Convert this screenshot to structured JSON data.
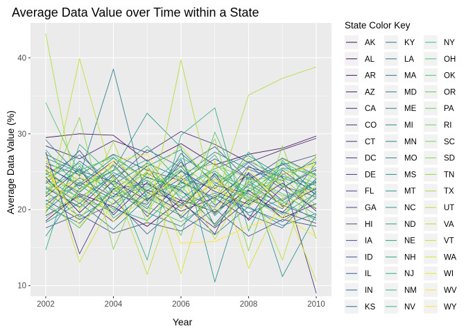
{
  "chart_data": {
    "type": "line",
    "title": "Average Data Value over Time within a State",
    "xlabel": "Year",
    "ylabel": "Average Data Value (%)",
    "x_ticks": [
      2002,
      2004,
      2006,
      2008,
      2010
    ],
    "y_ticks": [
      10,
      20,
      30,
      40
    ],
    "xlim": [
      2001.55,
      2010.45
    ],
    "ylim": [
      8.6,
      44.6
    ],
    "grid": true,
    "panel_background": "#ebebeb",
    "legend": {
      "title": "State Color Key",
      "placement": "right",
      "columns": 3
    },
    "palette": "viridis",
    "x": [
      2002,
      2003,
      2004,
      2005,
      2006,
      2007,
      2008,
      2009,
      2010
    ],
    "series": [
      {
        "name": "AK",
        "values": [
          18.5,
          22.1,
          20.4,
          17.8,
          21.3,
          19.7,
          22.6,
          18.9,
          20.8
        ]
      },
      {
        "name": "AL",
        "values": [
          29.5,
          30.0,
          29.8,
          26.4,
          28.7,
          25.9,
          27.3,
          28.1,
          29.7
        ]
      },
      {
        "name": "AR",
        "values": [
          24.3,
          19.6,
          23.8,
          21.2,
          25.1,
          22.4,
          20.7,
          23.5,
          19.8
        ]
      },
      {
        "name": "AZ",
        "values": [
          21.7,
          25.4,
          19.3,
          23.6,
          20.2,
          24.8,
          18.6,
          22.9,
          25.3
        ]
      },
      {
        "name": "CA",
        "values": [
          25.8,
          23.1,
          26.4,
          22.3,
          19.8,
          21.6,
          24.7,
          20.4,
          22.8
        ]
      },
      {
        "name": "CO",
        "values": [
          28.4,
          26.7,
          29.1,
          27.5,
          30.3,
          28.6,
          26.2,
          27.9,
          29.4
        ]
      },
      {
        "name": "CT",
        "values": [
          19.2,
          21.8,
          18.4,
          22.6,
          20.9,
          17.6,
          21.3,
          19.7,
          18.2
        ]
      },
      {
        "name": "DC",
        "values": [
          27.6,
          14.2,
          22.8,
          23.4,
          21.2,
          16.8,
          25.6,
          24.3,
          9.0
        ]
      },
      {
        "name": "DE",
        "values": [
          22.9,
          20.3,
          24.6,
          19.1,
          23.7,
          21.5,
          18.8,
          25.2,
          21.9
        ]
      },
      {
        "name": "FL",
        "values": [
          20.6,
          24.2,
          21.7,
          25.8,
          18.9,
          23.2,
          22.1,
          19.6,
          24.1
        ]
      },
      {
        "name": "GA",
        "values": [
          23.4,
          27.8,
          22.1,
          20.7,
          26.3,
          19.4,
          24.9,
          21.2,
          23.6
        ]
      },
      {
        "name": "HI",
        "values": [
          17.6,
          19.4,
          16.9,
          18.3,
          17.2,
          20.1,
          16.5,
          18.7,
          17.8
        ]
      },
      {
        "name": "IA",
        "values": [
          26.1,
          24.6,
          27.3,
          25.2,
          23.8,
          26.7,
          24.1,
          25.9,
          27.2
        ]
      },
      {
        "name": "ID",
        "values": [
          21.3,
          18.7,
          20.8,
          24.3,
          22.6,
          18.1,
          23.4,
          20.6,
          18.9
        ]
      },
      {
        "name": "IL",
        "values": [
          24.8,
          22.3,
          25.9,
          21.4,
          24.1,
          22.8,
          26.2,
          23.1,
          21.7
        ]
      },
      {
        "name": "IN",
        "values": [
          27.3,
          25.1,
          23.7,
          27.9,
          25.6,
          28.3,
          23.9,
          26.8,
          24.5
        ]
      },
      {
        "name": "KS",
        "values": [
          19.8,
          23.6,
          21.4,
          16.8,
          20.7,
          24.4,
          19.3,
          17.6,
          22.4
        ]
      },
      {
        "name": "KY",
        "values": [
          25.2,
          21.9,
          19.6,
          24.8,
          22.4,
          20.3,
          25.8,
          22.7,
          20.1
        ]
      },
      {
        "name": "LA",
        "values": [
          22.1,
          26.4,
          23.2,
          20.1,
          27.4,
          23.6,
          21.2,
          24.6,
          26.3
        ]
      },
      {
        "name": "MA",
        "values": [
          20.4,
          18.2,
          22.7,
          19.6,
          17.8,
          21.9,
          20.2,
          18.4,
          21.6
        ]
      },
      {
        "name": "MD",
        "values": [
          23.7,
          20.8,
          24.9,
          22.5,
          25.7,
          20.6,
          23.1,
          26.1,
          22.3
        ]
      },
      {
        "name": "ME",
        "values": [
          29.2,
          24.4,
          38.5,
          21.1,
          26.6,
          17.8,
          22.5,
          20.1,
          26.2
        ]
      },
      {
        "name": "MI",
        "values": [
          24.6,
          27.2,
          23.3,
          26.1,
          24.2,
          27.6,
          25.3,
          23.8,
          26.9
        ]
      },
      {
        "name": "MN",
        "values": [
          18.3,
          20.9,
          17.4,
          21.6,
          19.2,
          16.7,
          20.4,
          17.9,
          19.5
        ]
      },
      {
        "name": "MO",
        "values": [
          25.6,
          23.4,
          26.8,
          24.2,
          22.9,
          25.4,
          27.1,
          24.4,
          23.2
        ]
      },
      {
        "name": "MS",
        "values": [
          16.5,
          22.8,
          25.2,
          32.7,
          28.2,
          10.5,
          24.8,
          11.2,
          19.4
        ]
      },
      {
        "name": "MT",
        "values": [
          22.4,
          19.1,
          21.8,
          23.9,
          20.5,
          22.2,
          19.6,
          21.4,
          23.8
        ]
      },
      {
        "name": "NC",
        "values": [
          26.8,
          24.9,
          22.6,
          25.7,
          27.9,
          23.3,
          26.4,
          24.2,
          22.6
        ]
      },
      {
        "name": "ND",
        "values": [
          21.1,
          23.3,
          20.1,
          18.6,
          22.8,
          25.1,
          21.6,
          19.4,
          22.2
        ]
      },
      {
        "name": "NE",
        "values": [
          23.9,
          21.6,
          24.4,
          26.6,
          21.4,
          24.6,
          22.3,
          25.5,
          24.7
        ]
      },
      {
        "name": "NH",
        "values": [
          19.6,
          25.8,
          18.9,
          22.1,
          25.3,
          19.2,
          23.7,
          21.1,
          18.6
        ]
      },
      {
        "name": "NJ",
        "values": [
          14.7,
          28.6,
          24.4,
          13.4,
          29.8,
          33.4,
          17.2,
          26.5,
          21.9
        ]
      },
      {
        "name": "NM",
        "values": [
          27.9,
          22.7,
          25.1,
          28.4,
          23.6,
          21.3,
          27.6,
          22.9,
          25.6
        ]
      },
      {
        "name": "NV",
        "values": [
          22.6,
          25.2,
          26.9,
          21.8,
          23.4,
          27.2,
          20.9,
          26.2,
          24.1
        ]
      },
      {
        "name": "NY",
        "values": [
          24.2,
          26.1,
          21.6,
          23.1,
          26.8,
          24.7,
          22.9,
          20.8,
          23.7
        ]
      },
      {
        "name": "OH",
        "values": [
          20.9,
          17.6,
          23.1,
          20.4,
          18.4,
          21.2,
          24.3,
          22.1,
          19.3
        ]
      },
      {
        "name": "OK",
        "values": [
          34.1,
          24.7,
          27.2,
          23.7,
          16.6,
          30.2,
          20.5,
          25.4,
          23.4
        ]
      },
      {
        "name": "OR",
        "values": [
          23.1,
          20.4,
          22.3,
          24.9,
          21.8,
          19.6,
          23.6,
          24.8,
          21.4
        ]
      },
      {
        "name": "PA",
        "values": [
          26.4,
          23.8,
          20.7,
          22.9,
          24.9,
          26.1,
          21.8,
          18.9,
          25.2
        ]
      },
      {
        "name": "RI",
        "values": [
          18.9,
          22.4,
          25.7,
          20.9,
          23.2,
          17.9,
          22.8,
          24.1,
          20.6
        ]
      },
      {
        "name": "SC",
        "values": [
          25.3,
          21.3,
          19.9,
          26.3,
          20.1,
          25.8,
          24.2,
          21.8,
          22.9
        ]
      },
      {
        "name": "SD",
        "values": [
          21.8,
          32.1,
          14.8,
          25.4,
          22.1,
          29.3,
          14.6,
          28.4,
          16.2
        ]
      },
      {
        "name": "TN",
        "values": [
          22.2,
          24.1,
          23.6,
          19.7,
          25.9,
          22.7,
          26.8,
          23.3,
          20.2
        ]
      },
      {
        "name": "TX",
        "values": [
          25.1,
          18.8,
          24.2,
          22.4,
          19.3,
          24.1,
          21.4,
          26.7,
          24.3
        ]
      },
      {
        "name": "UT",
        "values": [
          43.2,
          19.8,
          28.9,
          18.2,
          39.7,
          20.8,
          35.1,
          37.3,
          38.8
        ]
      },
      {
        "name": "VA",
        "values": [
          19.4,
          39.9,
          23.9,
          11.5,
          24.6,
          16.1,
          23.9,
          13.4,
          27.4
        ]
      },
      {
        "name": "VT",
        "values": [
          23.6,
          21.1,
          26.1,
          24.4,
          28.4,
          22.9,
          20.4,
          23.9,
          26.6
        ]
      },
      {
        "name": "WA",
        "values": [
          27.1,
          13.1,
          21.2,
          25.1,
          11.6,
          26.4,
          12.3,
          21.6,
          10.6
        ]
      },
      {
        "name": "WI",
        "values": [
          20.1,
          24.8,
          18.4,
          21.7,
          24.4,
          19.9,
          25.4,
          20.3,
          23.1
        ]
      },
      {
        "name": "WV",
        "values": [
          24.4,
          22.6,
          26.4,
          27.3,
          20.2,
          23.9,
          21.1,
          24.7,
          25.9
        ]
      },
      {
        "name": "WY",
        "values": [
          25.7,
          17.9,
          22.4,
          25.9,
          15.6,
          15.8,
          17.8,
          19.2,
          16.4
        ]
      }
    ]
  }
}
